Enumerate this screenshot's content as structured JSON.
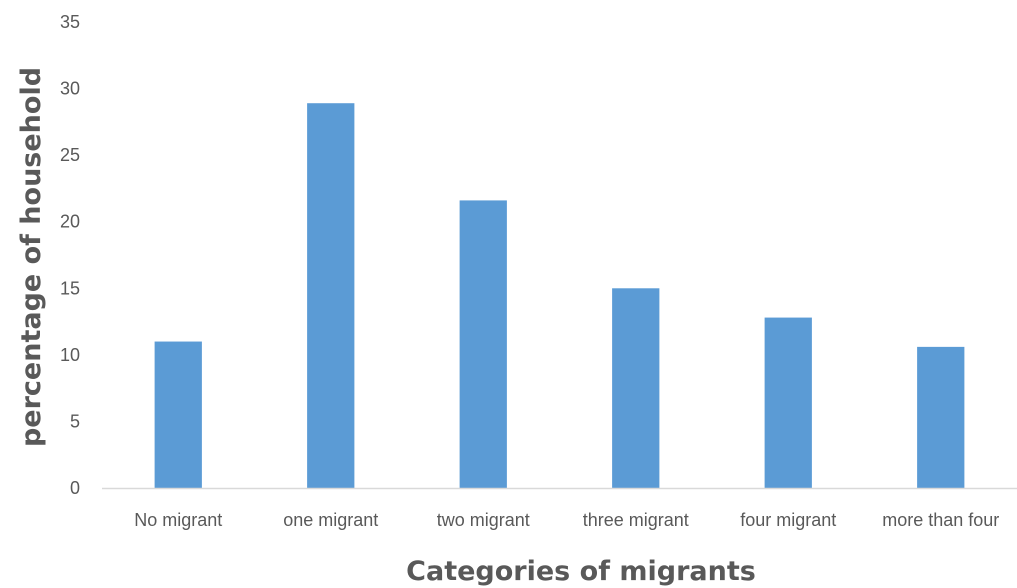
{
  "chart_data": {
    "type": "bar",
    "title": "",
    "xlabel": "Categories of migrants",
    "ylabel": "percentage of household",
    "categories": [
      "No migrant",
      "one migrant",
      "two migrant",
      "three migrant",
      "four migrant",
      "more than four"
    ],
    "values": [
      11,
      28.9,
      21.6,
      15,
      12.8,
      10.6
    ],
    "ylim": [
      0,
      35
    ],
    "yticks": [
      0,
      5,
      10,
      15,
      20,
      25,
      30,
      35
    ],
    "grid": false,
    "legend": "none",
    "bar_color": "#5b9bd5",
    "axis_color": "#d9d9d9"
  }
}
